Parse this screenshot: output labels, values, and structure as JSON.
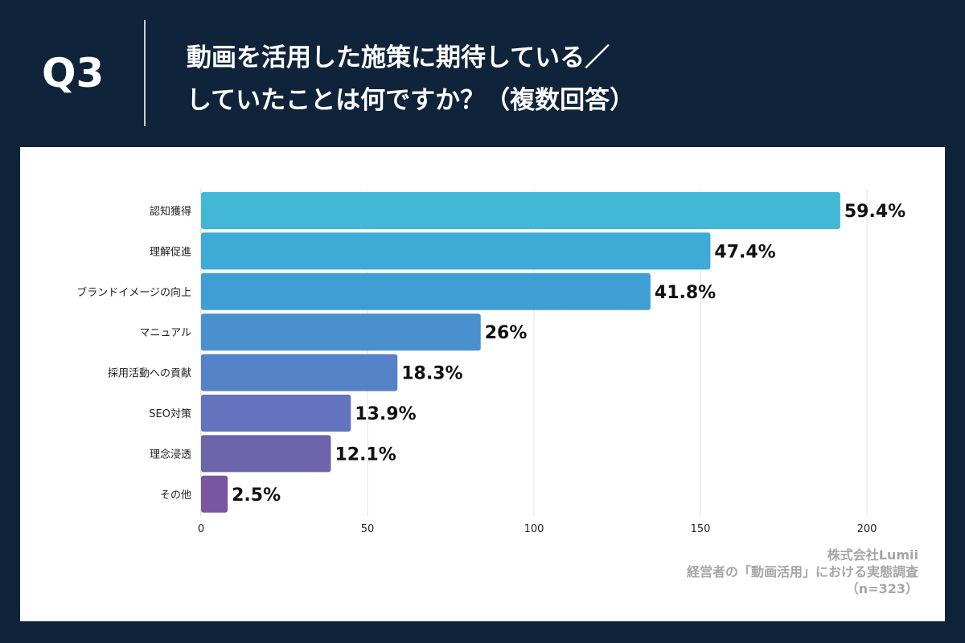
{
  "header": {
    "question_number": "Q3",
    "title_line1": "動画を活用した施策に期待している／",
    "title_line2": "していたことは何ですか？（複数回答）"
  },
  "credit": {
    "company": "株式会社Lumii",
    "survey": "経営者の「動画活用」における実態調査",
    "sample": "（n=323）"
  },
  "chart_data": {
    "type": "bar",
    "orientation": "horizontal",
    "categories": [
      "認知獲得",
      "理解促進",
      "ブランドイメージの向上",
      "マニュアル",
      "採用活動への貢献",
      "SEO対策",
      "理念浸透",
      "その他"
    ],
    "values": [
      192,
      153,
      135,
      84,
      59,
      45,
      39,
      8
    ],
    "data_labels": [
      "59.4%",
      "47.4%",
      "41.8%",
      "26%",
      "18.3%",
      "13.9%",
      "12.1%",
      "2.5%"
    ],
    "colors": [
      "#42b8d6",
      "#3eaad6",
      "#3f9ed4",
      "#4a90cf",
      "#5581c6",
      "#6373bd",
      "#6d64ab",
      "#7a55a0"
    ],
    "xlim": [
      0,
      200
    ],
    "xticks": [
      "0",
      "50",
      "100",
      "150",
      "200"
    ],
    "grid": true
  }
}
